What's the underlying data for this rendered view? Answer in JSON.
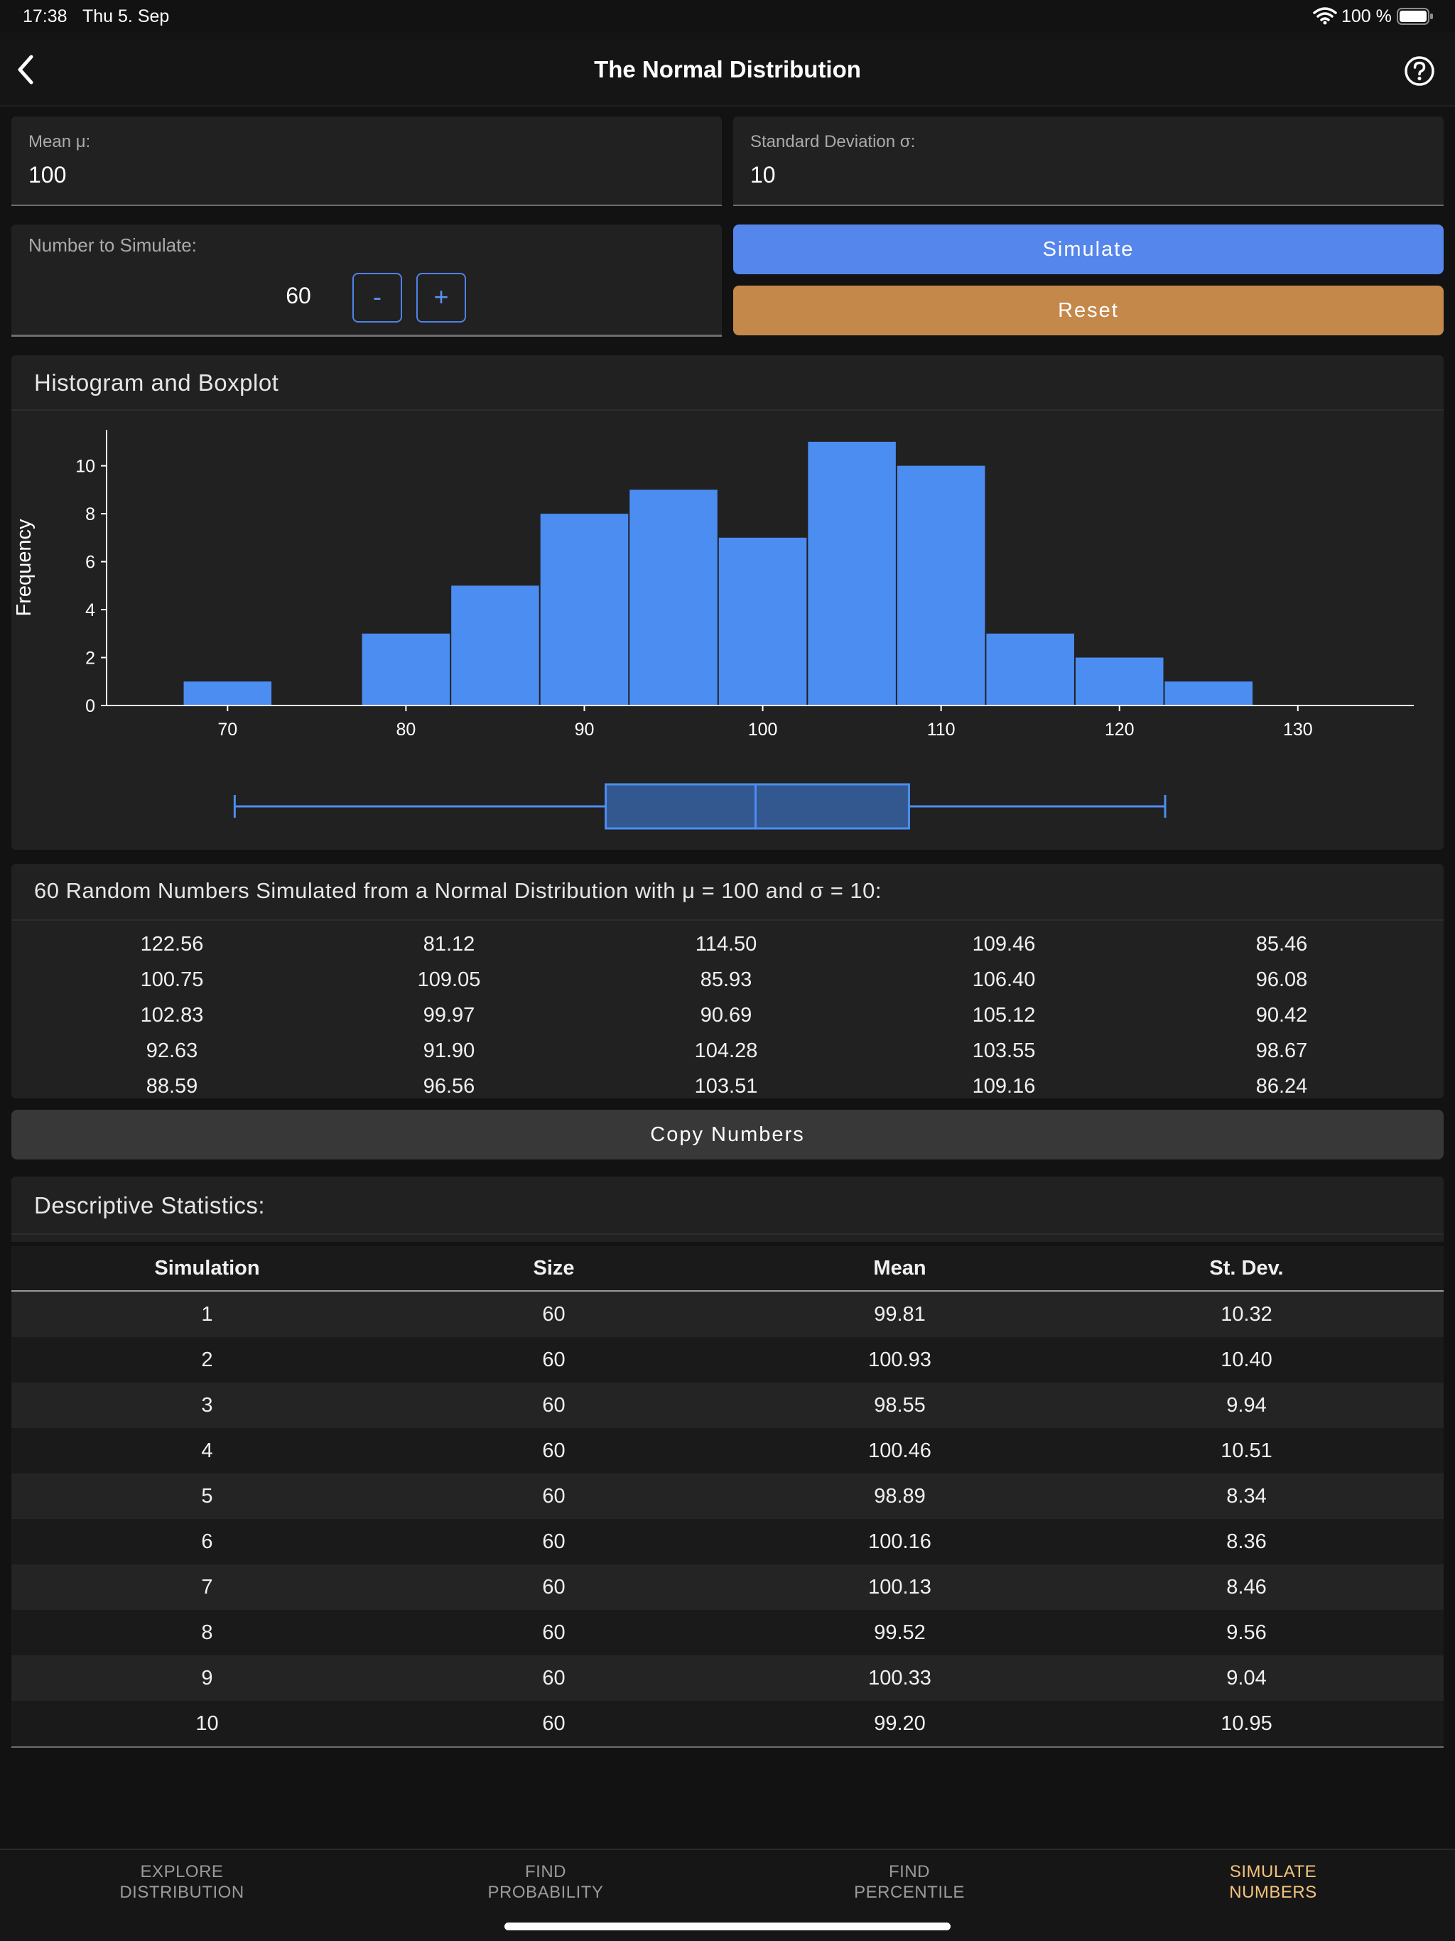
{
  "status": {
    "time": "17:38",
    "date": "Thu 5. Sep",
    "battery": "100 %"
  },
  "nav": {
    "title": "The Normal Distribution",
    "back_icon": "chevron-left-icon",
    "help_icon": "question-circle-icon"
  },
  "inputs": {
    "mean_label": "Mean μ:",
    "mean_value": "100",
    "sd_label": "Standard Deviation σ:",
    "sd_value": "10",
    "number_label": "Number to Simulate:",
    "number_value": "60",
    "minus_label": "-",
    "plus_label": "+"
  },
  "buttons": {
    "simulate": "Simulate",
    "reset": "Reset",
    "copy": "Copy Numbers"
  },
  "colors": {
    "accent": "#5586EB",
    "reset": "#C4884A",
    "bar": "#4C8DF2",
    "box": "#33578F",
    "active_tab": "#F2C37E"
  },
  "histogram": {
    "title": "Histogram and Boxplot",
    "ylabel": "Frequency"
  },
  "chart_data": {
    "type": "bar",
    "title": "",
    "xlabel": "",
    "ylabel": "Frequency",
    "bin_width": 5,
    "bins": [
      {
        "x0": 67.5,
        "x1": 72.5,
        "count": 1
      },
      {
        "x0": 72.5,
        "x1": 77.5,
        "count": 0
      },
      {
        "x0": 77.5,
        "x1": 82.5,
        "count": 3
      },
      {
        "x0": 82.5,
        "x1": 87.5,
        "count": 5
      },
      {
        "x0": 87.5,
        "x1": 92.5,
        "count": 8
      },
      {
        "x0": 92.5,
        "x1": 97.5,
        "count": 9
      },
      {
        "x0": 97.5,
        "x1": 102.5,
        "count": 7
      },
      {
        "x0": 102.5,
        "x1": 107.5,
        "count": 11
      },
      {
        "x0": 107.5,
        "x1": 112.5,
        "count": 10
      },
      {
        "x0": 112.5,
        "x1": 117.5,
        "count": 3
      },
      {
        "x0": 117.5,
        "x1": 122.5,
        "count": 2
      },
      {
        "x0": 122.5,
        "x1": 127.5,
        "count": 1
      }
    ],
    "xlim": [
      62.5,
      136.5
    ],
    "ylim": [
      0,
      11.5
    ],
    "xticks": [
      70,
      80,
      90,
      100,
      110,
      120,
      130
    ],
    "yticks": [
      0,
      2,
      4,
      6,
      8,
      10
    ],
    "grid": false,
    "boxplot": {
      "min": 70.4,
      "q1": 91.2,
      "median": 99.6,
      "q3": 108.2,
      "max": 122.56
    }
  },
  "numbers": {
    "title": "60 Random Numbers Simulated from a Normal Distribution with μ = 100 and σ = 10:",
    "rows": [
      [
        "122.56",
        "81.12",
        "114.50",
        "109.46",
        "85.46"
      ],
      [
        "100.75",
        "109.05",
        "85.93",
        "106.40",
        "96.08"
      ],
      [
        "102.83",
        "99.97",
        "90.69",
        "105.12",
        "90.42"
      ],
      [
        "92.63",
        "91.90",
        "104.28",
        "103.55",
        "98.67"
      ],
      [
        "88.59",
        "96.56",
        "103.51",
        "109.16",
        "86.24"
      ]
    ]
  },
  "stats": {
    "title": "Descriptive Statistics:",
    "headers": [
      "Simulation",
      "Size",
      "Mean",
      "St. Dev."
    ],
    "rows": [
      [
        "1",
        "60",
        "99.81",
        "10.32"
      ],
      [
        "2",
        "60",
        "100.93",
        "10.40"
      ],
      [
        "3",
        "60",
        "98.55",
        "9.94"
      ],
      [
        "4",
        "60",
        "100.46",
        "10.51"
      ],
      [
        "5",
        "60",
        "98.89",
        "8.34"
      ],
      [
        "6",
        "60",
        "100.16",
        "8.36"
      ],
      [
        "7",
        "60",
        "100.13",
        "8.46"
      ],
      [
        "8",
        "60",
        "99.52",
        "9.56"
      ],
      [
        "9",
        "60",
        "100.33",
        "9.04"
      ],
      [
        "10",
        "60",
        "99.20",
        "10.95"
      ]
    ]
  },
  "tabs": [
    {
      "line1": "EXPLORE",
      "line2": "DISTRIBUTION",
      "active": false
    },
    {
      "line1": "FIND",
      "line2": "PROBABILITY",
      "active": false
    },
    {
      "line1": "FIND",
      "line2": "PERCENTILE",
      "active": false
    },
    {
      "line1": "SIMULATE",
      "line2": "NUMBERS",
      "active": true
    }
  ]
}
